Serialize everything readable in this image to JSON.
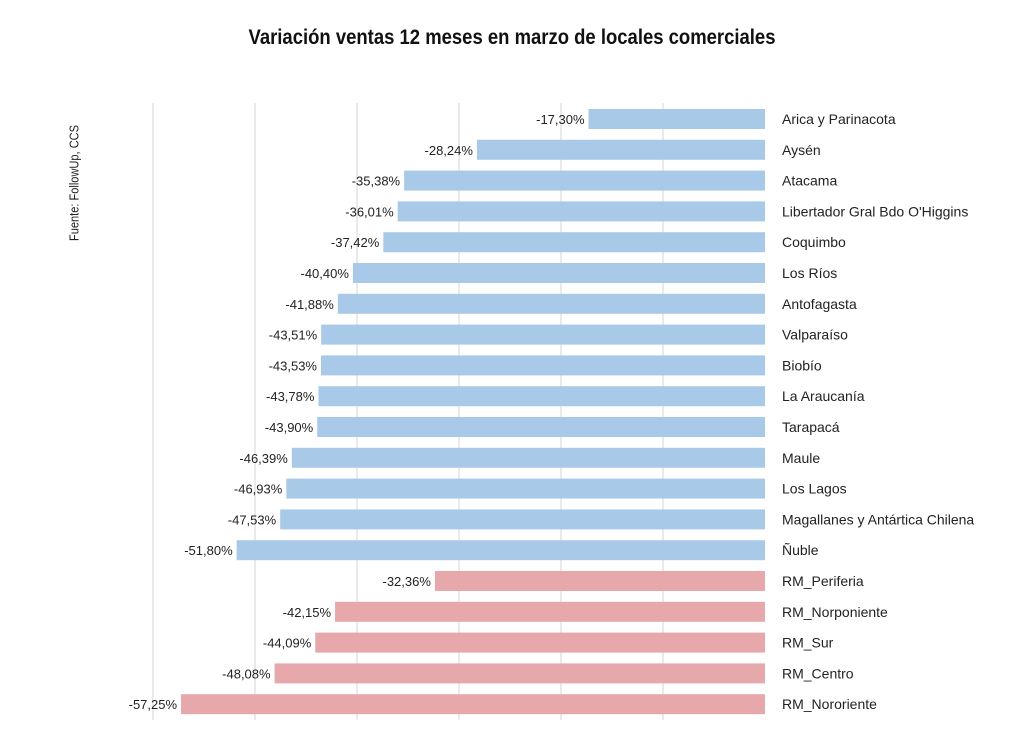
{
  "title": "Variación ventas 12 meses en marzo de locales comerciales",
  "source": "Fuente: FollowUp, CCS",
  "colors": {
    "regiones": "#a9c9e8",
    "rm": "#e6a8ab",
    "grid": "#d4d4d4",
    "text": "#222222"
  },
  "chart_data": {
    "type": "bar",
    "orientation": "horizontal",
    "title": "Variación ventas 12 meses en marzo de locales comerciales",
    "xlim": [
      -60,
      0
    ],
    "grid": true,
    "categories": [
      "Arica y Parinacota",
      "Aysén",
      "Atacama",
      "Libertador Gral Bdo O'Higgins",
      "Coquimbo",
      "Los Ríos",
      "Antofagasta",
      "Valparaíso",
      "Biobío",
      "La Araucanía",
      "Tarapacá",
      "Maule",
      "Los Lagos",
      "Magallanes y Antártica Chilena",
      "Ñuble",
      "RM_Periferia",
      "RM_Norponiente",
      "RM_Sur",
      "RM_Centro",
      "RM_Nororiente"
    ],
    "values": [
      -17.3,
      -28.24,
      -35.38,
      -36.01,
      -37.42,
      -40.4,
      -41.88,
      -43.51,
      -43.53,
      -43.78,
      -43.9,
      -46.39,
      -46.93,
      -47.53,
      -51.8,
      -32.36,
      -42.15,
      -44.09,
      -48.08,
      -57.25
    ],
    "value_labels": [
      "-17,30%",
      "-28,24%",
      "-35,38%",
      "-36,01%",
      "-37,42%",
      "-40,40%",
      "-41,88%",
      "-43,51%",
      "-43,53%",
      "-43,78%",
      "-43,90%",
      "-46,39%",
      "-46,93%",
      "-47,53%",
      "-51,80%",
      "-32,36%",
      "-42,15%",
      "-44,09%",
      "-48,08%",
      "-57,25%"
    ],
    "groups": [
      "regiones",
      "regiones",
      "regiones",
      "regiones",
      "regiones",
      "regiones",
      "regiones",
      "regiones",
      "regiones",
      "regiones",
      "regiones",
      "regiones",
      "regiones",
      "regiones",
      "regiones",
      "rm",
      "rm",
      "rm",
      "rm",
      "rm"
    ]
  }
}
